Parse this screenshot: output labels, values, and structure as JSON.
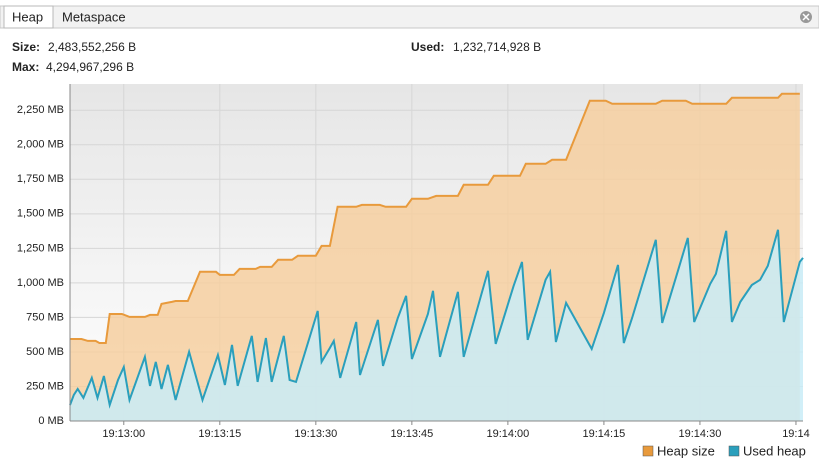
{
  "tabs": [
    "Heap",
    "Metaspace"
  ],
  "stats": [
    {
      "label": "Size:",
      "value": "2,483,552,256 B"
    },
    {
      "label": "Max:",
      "value": "4,294,967,296 B"
    },
    {
      "label": "Used:",
      "value": "1,232,714,928 B"
    }
  ],
  "chart_data": {
    "type": "area",
    "xlim": [
      -8.4,
      106.1
    ],
    "ylim": [
      0,
      2440
    ],
    "xticks": [
      {
        "value": 0,
        "label": "19:13:00"
      },
      {
        "value": 15,
        "label": "19:13:15"
      },
      {
        "value": 30,
        "label": "19:13:30"
      },
      {
        "value": 45,
        "label": "19:13:45"
      },
      {
        "value": 60,
        "label": "19:14:00"
      },
      {
        "value": 75,
        "label": "19:14:15"
      },
      {
        "value": 90,
        "label": "19:14:30"
      },
      {
        "value": 105,
        "label": "19:14"
      }
    ],
    "yticks": [
      {
        "value": 0,
        "label": "0 MB"
      },
      {
        "value": 250,
        "label": "250 MB"
      },
      {
        "value": 500,
        "label": "500 MB"
      },
      {
        "value": 750,
        "label": "750 MB"
      },
      {
        "value": 1000,
        "label": "1,000 MB"
      },
      {
        "value": 1250,
        "label": "1,250 MB"
      },
      {
        "value": 1500,
        "label": "1,500 MB"
      },
      {
        "value": 1750,
        "label": "1,750 MB"
      },
      {
        "value": 2000,
        "label": "2,000 MB"
      },
      {
        "value": 2250,
        "label": "2,250 MB"
      }
    ],
    "grid": true,
    "series": [
      {
        "name": "Heap size",
        "color": "#e89a3c",
        "fill": "#f6cfa0",
        "x": [
          -8.4,
          -6.6,
          -5.6,
          -4.4,
          -3.8,
          -2.8,
          -2.2,
          -0.3,
          0.9,
          3.3,
          4.1,
          5.3,
          5.9,
          7.5,
          8.1,
          10.0,
          11.9,
          14.4,
          15.0,
          17.2,
          18.1,
          20.6,
          21.3,
          23.1,
          24.1,
          26.3,
          27.2,
          30.0,
          30.9,
          32.2,
          33.4,
          36.3,
          37.2,
          40.0,
          40.9,
          44.1,
          45.0,
          47.5,
          48.8,
          52.2,
          53.1,
          56.9,
          57.8,
          61.9,
          62.8,
          65.9,
          66.9,
          69.1,
          72.8,
          75.3,
          76.3,
          83.1,
          84.1,
          87.8,
          88.8,
          94.1,
          95.0,
          102.2,
          102.8,
          105.6
        ],
        "values": [
          594,
          594,
          580,
          580,
          565,
          565,
          775,
          775,
          754,
          754,
          768,
          768,
          848,
          862,
          869,
          869,
          1080,
          1080,
          1058,
          1058,
          1101,
          1101,
          1116,
          1116,
          1167,
          1167,
          1196,
          1196,
          1268,
          1268,
          1551,
          1551,
          1565,
          1565,
          1551,
          1551,
          1609,
          1609,
          1630,
          1630,
          1710,
          1710,
          1775,
          1775,
          1862,
          1862,
          1891,
          1891,
          2319,
          2319,
          2297,
          2297,
          2319,
          2319,
          2297,
          2297,
          2340,
          2340,
          2369,
          2369
        ]
      },
      {
        "name": "Used heap",
        "color": "#2a9fbc",
        "fill": "#c9ecf7",
        "x": [
          -8.4,
          -7.8,
          -7.2,
          -6.3,
          -5.0,
          -4.1,
          -3.1,
          -2.2,
          -0.9,
          0,
          0.9,
          3.3,
          4.1,
          5.0,
          5.9,
          6.9,
          8.1,
          10.2,
          12.3,
          14.7,
          15.8,
          16.9,
          17.8,
          20.0,
          20.9,
          22.2,
          23.1,
          25.0,
          25.9,
          26.9,
          30.3,
          30.9,
          32.2,
          32.8,
          33.8,
          36.3,
          36.9,
          39.7,
          40.5,
          42.8,
          44.1,
          45.0,
          47.5,
          48.3,
          49.4,
          52.2,
          53.1,
          56.9,
          58.1,
          60.9,
          62.2,
          63.1,
          65.9,
          66.6,
          67.5,
          69.1,
          73.1,
          75.0,
          77.2,
          78.1,
          79.4,
          83.1,
          84.1,
          86.6,
          88.1,
          89.1,
          91.6,
          92.5,
          94.1,
          95.0,
          96.3,
          98.1,
          99.4,
          100.6,
          102.2,
          103.1,
          105.6,
          106.1
        ],
        "values": [
          116,
          188,
          232,
          167,
          312,
          167,
          326,
          116,
          297,
          391,
          152,
          464,
          254,
          428,
          232,
          406,
          152,
          500,
          152,
          478,
          261,
          551,
          254,
          616,
          283,
          601,
          283,
          616,
          297,
          283,
          797,
          428,
          529,
          580,
          312,
          717,
          333,
          732,
          399,
          746,
          906,
          449,
          775,
          942,
          464,
          935,
          464,
          1087,
          558,
          978,
          1152,
          587,
          1022,
          1080,
          572,
          855,
          522,
          783,
          1130,
          565,
          746,
          1312,
          710,
          1094,
          1326,
          717,
          993,
          1065,
          1377,
          717,
          862,
          985,
          1022,
          1123,
          1384,
          717,
          1152,
          1181
        ]
      }
    ]
  }
}
